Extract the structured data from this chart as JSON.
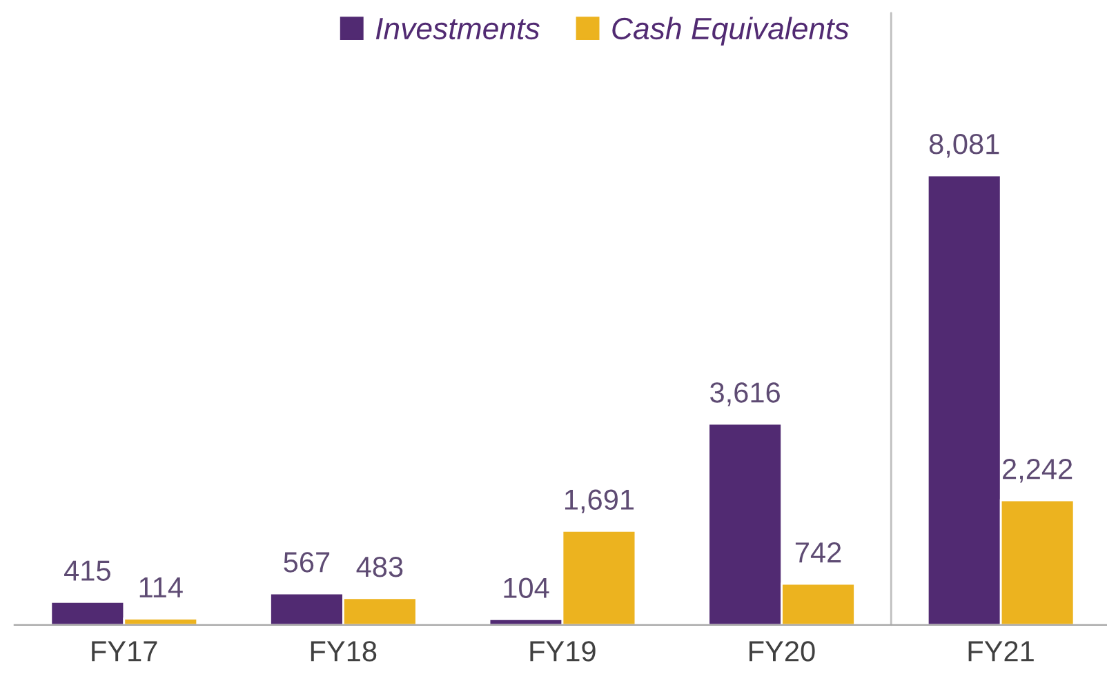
{
  "chart_data": {
    "type": "bar",
    "categories": [
      "FY17",
      "FY18",
      "FY19",
      "FY20",
      "FY21"
    ],
    "series": [
      {
        "name": "Investments",
        "color": "#512a72",
        "values": [
          415,
          567,
          104,
          3616,
          8081
        ],
        "value_labels": [
          "415",
          "567",
          "104",
          "3,616",
          "8,081"
        ]
      },
      {
        "name": "Cash Equivalents",
        "color": "#ecb31f",
        "values": [
          114,
          483,
          1691,
          742,
          2242
        ],
        "value_labels": [
          "114",
          "483",
          "1,691",
          "742",
          "2,242"
        ]
      }
    ],
    "legend": "top",
    "grid": false
  }
}
